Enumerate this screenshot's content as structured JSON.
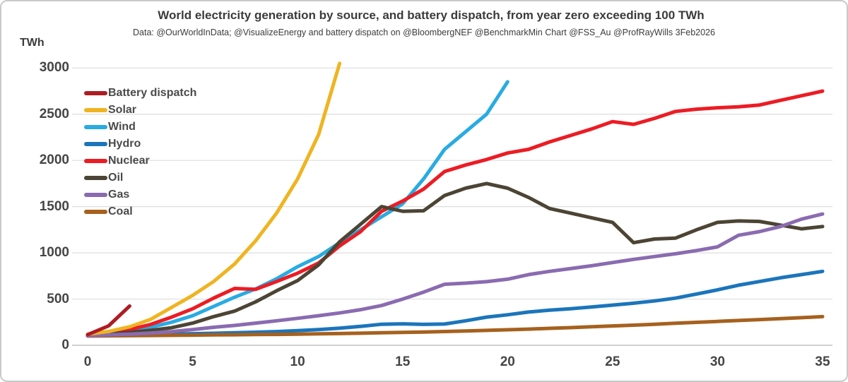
{
  "header": {
    "title": "World electricity generation by source, and battery dispatch, from year zero exceeding 100 TWh",
    "subtitle": "Data: @OurWorldInData; @VisualizeEnergy and battery dispatch on @BloombergNEF @BenchmarkMin Chart @FSS_Au @ProfRayWills  3Feb2026"
  },
  "y_axis": {
    "unit_label": "TWh",
    "ticks": [
      3000,
      2500,
      2000,
      1500,
      1000,
      500,
      0
    ]
  },
  "x_axis": {
    "ticks": [
      0,
      5,
      10,
      15,
      20,
      25,
      30,
      35
    ]
  },
  "chart_data": {
    "type": "line",
    "title": "World electricity generation by source, and battery dispatch, from year zero exceeding 100 TWh",
    "xlabel": "",
    "ylabel": "TWh",
    "x_range": [
      0,
      35
    ],
    "y_range": [
      0,
      3000
    ],
    "grid": true,
    "legend_position": "top-left",
    "gridline_color": "#dedede",
    "zeroline_color": "#c2c2c2",
    "series": [
      {
        "name": "Battery dispatch",
        "color": "#ae1c23",
        "x": [
          0,
          1,
          2
        ],
        "values": [
          115,
          210,
          425
        ]
      },
      {
        "name": "Solar",
        "color": "#efb421",
        "x": [
          0,
          1,
          2,
          3,
          4,
          5,
          6,
          7,
          8,
          9,
          10,
          11,
          12
        ],
        "values": [
          120,
          150,
          200,
          280,
          410,
          540,
          690,
          880,
          1130,
          1430,
          1800,
          2280,
          3050
        ]
      },
      {
        "name": "Wind",
        "color": "#29abe2",
        "x": [
          0,
          1,
          2,
          3,
          4,
          5,
          6,
          7,
          8,
          9,
          10,
          11,
          12,
          13,
          14,
          15,
          16,
          17,
          18,
          19,
          20
        ],
        "values": [
          110,
          130,
          155,
          195,
          250,
          320,
          420,
          520,
          610,
          720,
          850,
          960,
          1110,
          1250,
          1390,
          1530,
          1800,
          2120,
          2310,
          2500,
          2850
        ]
      },
      {
        "name": "Hydro",
        "color": "#1b75bb",
        "x": [
          0,
          1,
          2,
          3,
          4,
          5,
          6,
          7,
          8,
          9,
          10,
          11,
          12,
          13,
          14,
          15,
          16,
          17,
          18,
          19,
          20,
          21,
          22,
          23,
          24,
          25,
          26,
          27,
          28,
          29,
          30,
          31,
          32,
          33,
          34,
          35
        ],
        "values": [
          105,
          110,
          113,
          116,
          120,
          125,
          130,
          136,
          141,
          148,
          158,
          170,
          185,
          205,
          228,
          232,
          226,
          230,
          265,
          305,
          330,
          360,
          380,
          395,
          415,
          435,
          455,
          480,
          510,
          555,
          600,
          650,
          690,
          730,
          765,
          800
        ]
      },
      {
        "name": "Nuclear",
        "color": "#ec1c24",
        "x": [
          0,
          1,
          2,
          3,
          4,
          5,
          6,
          7,
          8,
          9,
          10,
          11,
          12,
          13,
          14,
          15,
          16,
          17,
          18,
          19,
          20,
          21,
          22,
          23,
          24,
          25,
          26,
          27,
          28,
          29,
          30,
          31,
          32,
          33,
          34,
          35
        ],
        "values": [
          110,
          140,
          170,
          225,
          305,
          395,
          510,
          615,
          605,
          690,
          780,
          890,
          1075,
          1230,
          1450,
          1560,
          1690,
          1880,
          1950,
          2010,
          2080,
          2120,
          2200,
          2270,
          2340,
          2420,
          2390,
          2455,
          2530,
          2555,
          2570,
          2580,
          2600,
          2650,
          2700,
          2750
        ]
      },
      {
        "name": "Oil",
        "color": "#4c4434",
        "x": [
          0,
          1,
          2,
          3,
          4,
          5,
          6,
          7,
          8,
          9,
          10,
          11,
          12,
          13,
          14,
          15,
          16,
          17,
          18,
          19,
          20,
          21,
          22,
          23,
          24,
          25,
          26,
          27,
          28,
          29,
          30,
          31,
          32,
          33,
          34,
          35
        ],
        "values": [
          108,
          122,
          140,
          162,
          190,
          240,
          310,
          370,
          470,
          590,
          700,
          870,
          1120,
          1310,
          1500,
          1450,
          1455,
          1620,
          1700,
          1750,
          1700,
          1600,
          1480,
          1430,
          1380,
          1330,
          1110,
          1150,
          1160,
          1250,
          1330,
          1345,
          1340,
          1300,
          1260,
          1285
        ]
      },
      {
        "name": "Gas",
        "color": "#8a6bb0",
        "x": [
          0,
          1,
          2,
          3,
          4,
          5,
          6,
          7,
          8,
          9,
          10,
          11,
          12,
          13,
          14,
          15,
          16,
          17,
          18,
          19,
          20,
          21,
          22,
          23,
          24,
          25,
          26,
          27,
          28,
          29,
          30,
          31,
          32,
          33,
          34,
          35
        ],
        "values": [
          105,
          112,
          120,
          132,
          148,
          170,
          195,
          215,
          240,
          265,
          292,
          320,
          350,
          385,
          430,
          500,
          575,
          660,
          672,
          688,
          715,
          765,
          800,
          830,
          860,
          895,
          930,
          960,
          990,
          1025,
          1065,
          1190,
          1230,
          1285,
          1365,
          1420
        ]
      },
      {
        "name": "Coal",
        "color": "#a6611e",
        "x": [
          0,
          1,
          2,
          3,
          4,
          5,
          6,
          7,
          8,
          9,
          10,
          11,
          12,
          13,
          14,
          15,
          16,
          17,
          18,
          19,
          20,
          21,
          22,
          23,
          24,
          25,
          26,
          27,
          28,
          29,
          30,
          31,
          32,
          33,
          34,
          35
        ],
        "values": [
          100,
          102,
          104,
          106,
          108,
          110,
          112,
          114,
          116,
          118,
          121,
          124,
          127,
          131,
          135,
          139,
          144,
          149,
          155,
          161,
          168,
          175,
          183,
          191,
          200,
          209,
          218,
          228,
          238,
          248,
          258,
          268,
          278,
          289,
          299,
          310
        ]
      }
    ]
  }
}
